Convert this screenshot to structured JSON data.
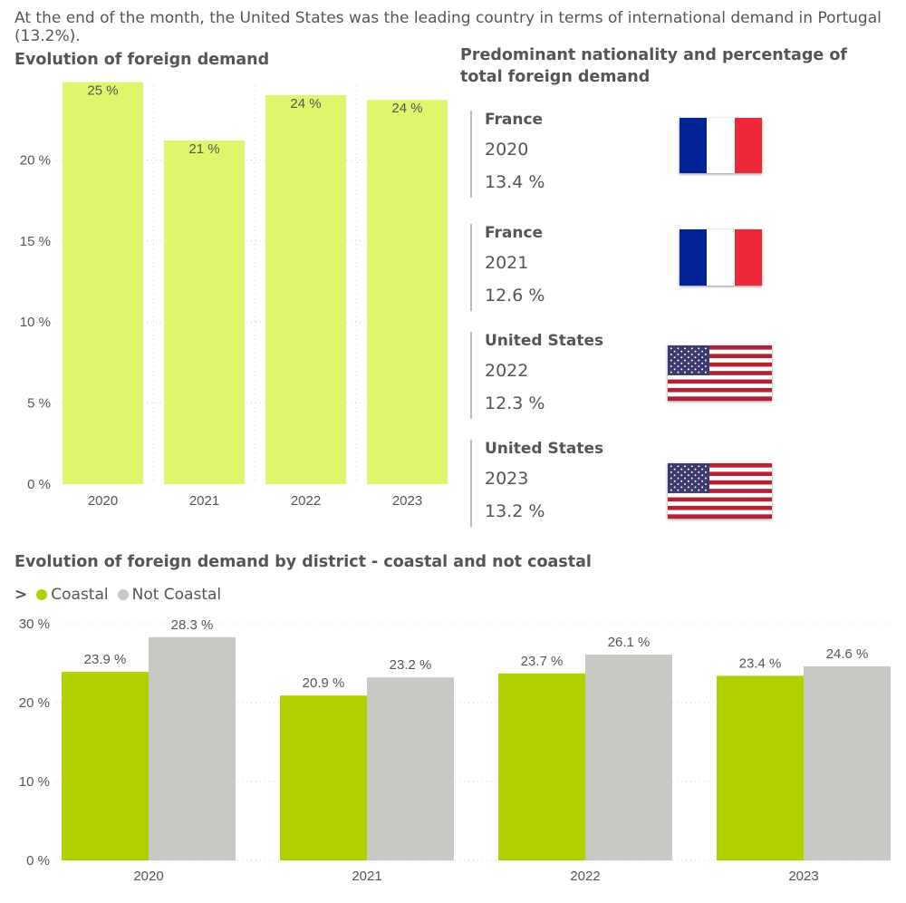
{
  "intro_text": "At the end of the month, the United States was the leading country in terms of international demand in Portugal (13.2%).",
  "colors": {
    "bar1": "#e0f56c",
    "coastal": "#b2d000",
    "not_coastal": "#c8c8c4",
    "grid": "#d0d0d0"
  },
  "chart_data": [
    {
      "type": "bar",
      "title": "Evolution of foreign demand",
      "categories": [
        "2020",
        "2021",
        "2022",
        "2023"
      ],
      "values": [
        24.8,
        21.2,
        24.0,
        23.7
      ],
      "data_labels": [
        "25 %",
        "21 %",
        "24 %",
        "24 %"
      ],
      "y_ticks": [
        "0 %",
        "5 %",
        "10 %",
        "15 %",
        "20 %"
      ],
      "ylim": [
        0,
        25
      ],
      "grid": true
    },
    {
      "type": "bar",
      "title": "Evolution of foreign demand by district - coastal and not coastal",
      "legend_prefix": ">",
      "legend_position": "top-left",
      "categories": [
        "2020",
        "2021",
        "2022",
        "2023"
      ],
      "series": [
        {
          "name": "Coastal",
          "values": [
            23.9,
            20.9,
            23.7,
            23.4
          ],
          "labels": [
            "23.9 %",
            "20.9 %",
            "23.7 %",
            "23.4 %"
          ]
        },
        {
          "name": "Not Coastal",
          "values": [
            28.3,
            23.2,
            26.1,
            24.6
          ],
          "labels": [
            "28.3 %",
            "23.2 %",
            "26.1 %",
            "24.6 %"
          ]
        }
      ],
      "y_ticks": [
        "0 %",
        "10 %",
        "20 %",
        "30 %"
      ],
      "ylim": [
        0,
        30
      ],
      "grid": true
    }
  ],
  "nationality": {
    "title": "Predominant nationality and percentage of total foreign demand",
    "cards": [
      {
        "country": "France",
        "year": "2020",
        "pct": "13.4 %",
        "flag": "france-flag"
      },
      {
        "country": "France",
        "year": "2021",
        "pct": "12.6 %",
        "flag": "france-flag"
      },
      {
        "country": "United States",
        "year": "2022",
        "pct": "12.3 %",
        "flag": "usa-flag"
      },
      {
        "country": "United States",
        "year": "2023",
        "pct": "13.2 %",
        "flag": "usa-flag"
      }
    ]
  }
}
